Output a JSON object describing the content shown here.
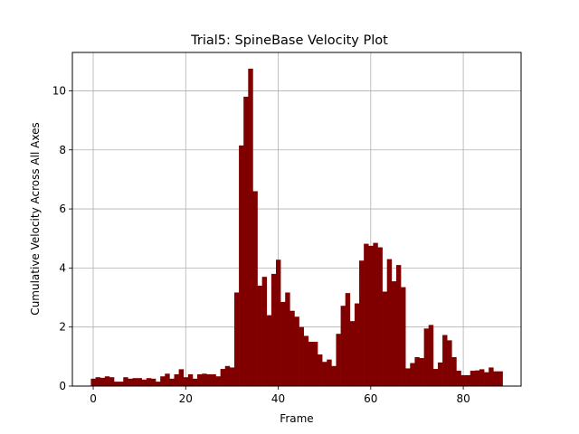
{
  "chart_data": {
    "type": "bar",
    "title": "Trial5: SpineBase Velocity Plot",
    "xlabel": "Frame",
    "ylabel": "Cumulative Velocity Across All Axes",
    "xlim": [
      -4.5,
      92.5
    ],
    "ylim": [
      0,
      11.3
    ],
    "xticks": [
      0,
      20,
      40,
      60,
      80
    ],
    "yticks": [
      0,
      2,
      4,
      6,
      8,
      10
    ],
    "grid": true,
    "bar_color": "#800000",
    "x": [
      0,
      1,
      2,
      3,
      4,
      5,
      6,
      7,
      8,
      9,
      10,
      11,
      12,
      13,
      14,
      15,
      16,
      17,
      18,
      19,
      20,
      21,
      22,
      23,
      24,
      25,
      26,
      27,
      28,
      29,
      30,
      31,
      32,
      33,
      34,
      35,
      36,
      37,
      38,
      39,
      40,
      41,
      42,
      43,
      44,
      45,
      46,
      47,
      48,
      49,
      50,
      51,
      52,
      53,
      54,
      55,
      56,
      57,
      58,
      59,
      60,
      61,
      62,
      63,
      64,
      65,
      66,
      67,
      68,
      69,
      70,
      71,
      72,
      73,
      74,
      75,
      76,
      77,
      78,
      79,
      80,
      81,
      82,
      83,
      84,
      85,
      86,
      87,
      88
    ],
    "values": [
      0.25,
      0.3,
      0.28,
      0.33,
      0.3,
      0.15,
      0.15,
      0.3,
      0.25,
      0.27,
      0.27,
      0.22,
      0.27,
      0.25,
      0.15,
      0.33,
      0.42,
      0.25,
      0.4,
      0.57,
      0.3,
      0.4,
      0.25,
      0.4,
      0.42,
      0.4,
      0.4,
      0.33,
      0.58,
      0.68,
      0.63,
      3.17,
      8.15,
      9.8,
      10.75,
      6.6,
      3.4,
      3.7,
      2.4,
      3.8,
      4.28,
      2.85,
      3.17,
      2.55,
      2.35,
      2.0,
      1.7,
      1.5,
      1.5,
      1.07,
      0.82,
      0.9,
      0.68,
      1.77,
      2.72,
      3.15,
      2.2,
      2.8,
      4.25,
      4.82,
      4.75,
      4.85,
      4.7,
      3.2,
      4.3,
      3.55,
      4.1,
      3.35,
      0.6,
      0.78,
      0.98,
      0.95,
      1.95,
      2.07,
      0.58,
      0.8,
      1.73,
      1.55,
      0.98,
      0.52,
      0.37,
      0.37,
      0.52,
      0.53,
      0.57,
      0.47,
      0.63,
      0.5,
      0.5
    ]
  }
}
